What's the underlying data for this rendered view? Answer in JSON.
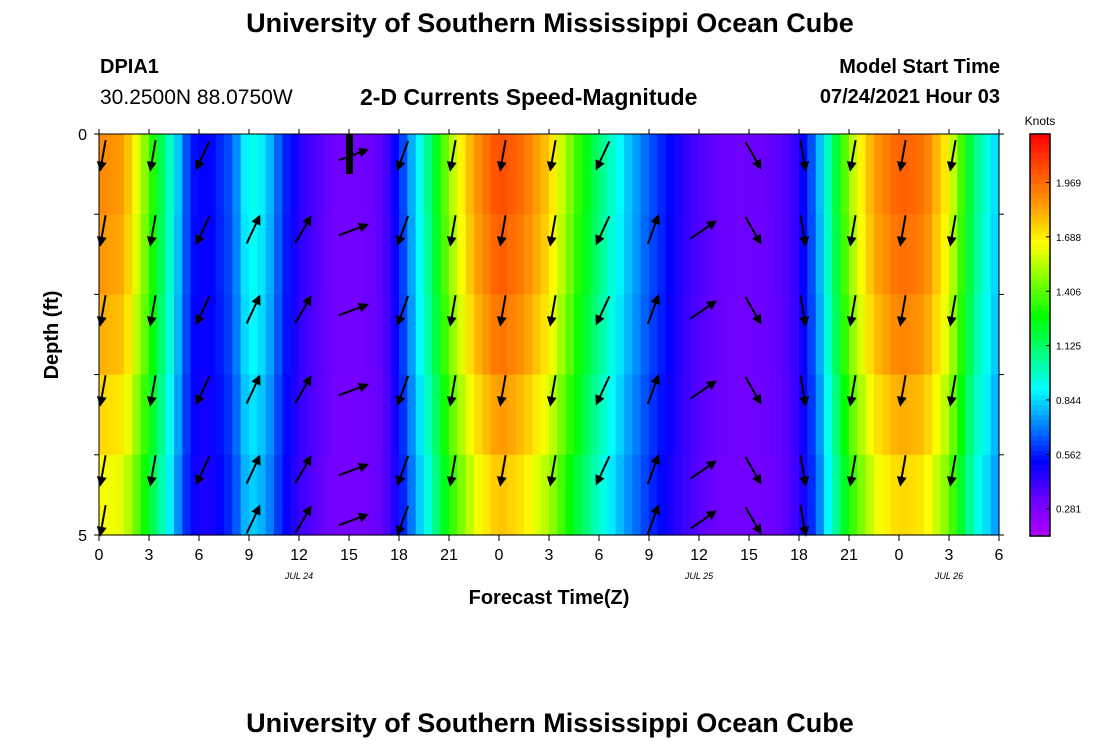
{
  "header": {
    "title": "University of Southern Mississippi Ocean Cube",
    "station_id": "DPIA1",
    "station_coords": "30.2500N  88.0750W",
    "chart_title": "2-D Currents Speed-Magnitude",
    "model_start_label": "Model Start Time",
    "model_start_value": "07/24/2021 Hour 03"
  },
  "footer": {
    "title": "University of Southern Mississippi Ocean Cube"
  },
  "chart_data": {
    "type": "heatmap",
    "xlabel": "Forecast Time(Z)",
    "ylabel": "Depth (ft)",
    "x_range_hours": [
      0,
      54
    ],
    "y_range": [
      0,
      5
    ],
    "y_tick_labels": [
      "0",
      "5"
    ],
    "x_tick_labels": [
      "0",
      "3",
      "6",
      "9",
      "12",
      "15",
      "18",
      "21",
      "0",
      "3",
      "6",
      "9",
      "12",
      "15",
      "18",
      "21",
      "0",
      "3",
      "6"
    ],
    "date_labels": [
      {
        "text": "JUL 24",
        "hour": 12
      },
      {
        "text": "JUL 25",
        "hour": 36
      },
      {
        "text": "JUL 26",
        "hour": 51
      }
    ],
    "colorbar": {
      "title": "Knots",
      "ticks": [
        0.281,
        0.562,
        0.844,
        1.125,
        1.406,
        1.688,
        1.969
      ],
      "tick_labels": [
        "0.281",
        "0.562",
        "0.844",
        "1.125",
        "1.406",
        "1.688",
        "1.969"
      ],
      "range": [
        0.14,
        2.22
      ],
      "colors": [
        "#b000ff",
        "#6a00ff",
        "#0000ff",
        "#0080ff",
        "#00ffff",
        "#00ff80",
        "#00ff00",
        "#80ff00",
        "#ffff00",
        "#ffa000",
        "#ff5000",
        "#ff0000"
      ]
    },
    "speed_profile": {
      "hours": [
        0,
        1.5,
        3,
        4.5,
        5.5,
        6.5,
        8,
        9,
        10,
        11,
        12,
        13,
        14,
        15,
        16,
        17,
        18,
        19,
        20,
        21,
        22.5,
        24,
        25.5,
        27,
        28.5,
        30,
        31.5,
        33,
        34,
        35,
        36,
        37,
        38,
        39,
        40,
        41,
        42,
        43,
        44,
        45,
        46.5,
        48,
        49.5,
        51,
        52.5,
        54
      ],
      "knots": [
        1.9,
        1.85,
        1.4,
        0.9,
        0.55,
        0.5,
        0.65,
        0.95,
        0.85,
        0.6,
        0.45,
        0.38,
        0.32,
        0.3,
        0.32,
        0.35,
        0.55,
        0.85,
        1.15,
        1.5,
        1.85,
        2.05,
        1.95,
        1.75,
        1.4,
        1.1,
        0.85,
        0.65,
        0.55,
        0.45,
        0.38,
        0.34,
        0.32,
        0.32,
        0.33,
        0.36,
        0.45,
        0.7,
        1.1,
        1.5,
        1.85,
        2.0,
        1.95,
        1.65,
        1.1,
        0.8
      ],
      "depth_layer_factor": [
        1.0,
        0.98,
        0.95,
        0.9,
        0.85,
        0.8
      ]
    },
    "vectors": [
      {
        "hour": 0,
        "depths": [
          1,
          2,
          3,
          4,
          5,
          6
        ],
        "angle_deg": 260
      },
      {
        "hour": 3,
        "depths": [
          1,
          2,
          3,
          4,
          5
        ],
        "angle_deg": 260
      },
      {
        "hour": 6,
        "depths": [
          1,
          2,
          3,
          4,
          5
        ],
        "angle_deg": 245
      },
      {
        "hour": 9,
        "depths": [
          2,
          3,
          4,
          5,
          6
        ],
        "angle_deg": 65
      },
      {
        "hour": 12,
        "depths": [
          2,
          3,
          4,
          5,
          6
        ],
        "angle_deg": 60
      },
      {
        "hour": 15,
        "depths": [
          1,
          2,
          3,
          4,
          5,
          6
        ],
        "angle_deg": 20
      },
      {
        "hour": 18,
        "depths": [
          1,
          2,
          3,
          4,
          5,
          6
        ],
        "angle_deg": 250
      },
      {
        "hour": 21,
        "depths": [
          1,
          2,
          3,
          4,
          5
        ],
        "angle_deg": 260
      },
      {
        "hour": 24,
        "depths": [
          1,
          2,
          3,
          4,
          5
        ],
        "angle_deg": 260
      },
      {
        "hour": 27,
        "depths": [
          1,
          2,
          3,
          4,
          5
        ],
        "angle_deg": 260
      },
      {
        "hour": 30,
        "depths": [
          1,
          2,
          3,
          4,
          5
        ],
        "angle_deg": 245
      },
      {
        "hour": 33,
        "depths": [
          2,
          3,
          4,
          5,
          6
        ],
        "angle_deg": 70
      },
      {
        "hour": 36,
        "depths": [
          2,
          3,
          4,
          5,
          6
        ],
        "angle_deg": 35
      },
      {
        "hour": 39,
        "depths": [
          1,
          2,
          3,
          4,
          5,
          6
        ],
        "angle_deg": 300
      },
      {
        "hour": 42,
        "depths": [
          1,
          2,
          3,
          4,
          5,
          6
        ],
        "angle_deg": 280
      },
      {
        "hour": 45,
        "depths": [
          1,
          2,
          3,
          4,
          5
        ],
        "angle_deg": 260
      },
      {
        "hour": 48,
        "depths": [
          1,
          2,
          3,
          4,
          5
        ],
        "angle_deg": 260
      },
      {
        "hour": 51,
        "depths": [
          1,
          2,
          3,
          4,
          5
        ],
        "angle_deg": 260
      }
    ]
  }
}
